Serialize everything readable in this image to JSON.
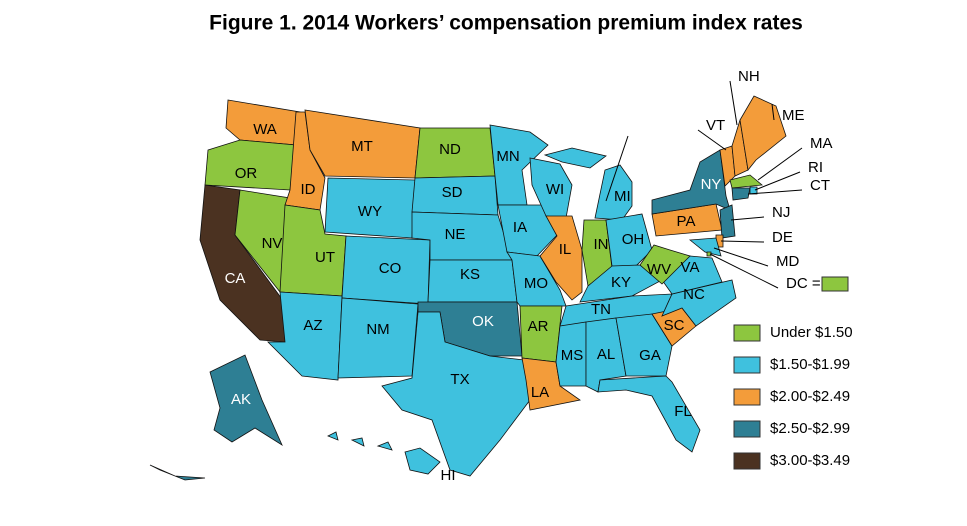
{
  "title": "Figure 1. 2014 Workers’ compensation premium index rates",
  "legend": [
    {
      "label": "Under $1.50",
      "color": "#8dc63f"
    },
    {
      "label": "$1.50-$1.99",
      "color": "#3fc1de"
    },
    {
      "label": "$2.00-$2.49",
      "color": "#f39c3a"
    },
    {
      "label": "$2.50-$2.99",
      "color": "#2e7f94"
    },
    {
      "label": "$3.00-$3.49",
      "color": "#4b3221"
    }
  ],
  "states": [
    {
      "label": "WA",
      "class": 2
    },
    {
      "label": "OR",
      "class": 0
    },
    {
      "label": "CA",
      "class": 4
    },
    {
      "label": "NV",
      "class": 0
    },
    {
      "label": "ID",
      "class": 2
    },
    {
      "label": "MT",
      "class": 2
    },
    {
      "label": "WY",
      "class": 1
    },
    {
      "label": "UT",
      "class": 0
    },
    {
      "label": "CO",
      "class": 1
    },
    {
      "label": "AZ",
      "class": 1
    },
    {
      "label": "NM",
      "class": 1
    },
    {
      "label": "ND",
      "class": 0
    },
    {
      "label": "SD",
      "class": 1
    },
    {
      "label": "NE",
      "class": 1
    },
    {
      "label": "KS",
      "class": 1
    },
    {
      "label": "OK",
      "class": 3
    },
    {
      "label": "TX",
      "class": 1
    },
    {
      "label": "MN",
      "class": 1
    },
    {
      "label": "IA",
      "class": 1
    },
    {
      "label": "MO",
      "class": 1
    },
    {
      "label": "AR",
      "class": 0
    },
    {
      "label": "LA",
      "class": 2
    },
    {
      "label": "WI",
      "class": 1
    },
    {
      "label": "IL",
      "class": 2
    },
    {
      "label": "MI",
      "class": 1
    },
    {
      "label": "IN",
      "class": 0
    },
    {
      "label": "OH",
      "class": 1
    },
    {
      "label": "KY",
      "class": 1
    },
    {
      "label": "TN",
      "class": 1
    },
    {
      "label": "MS",
      "class": 1
    },
    {
      "label": "AL",
      "class": 1
    },
    {
      "label": "GA",
      "class": 1
    },
    {
      "label": "FL",
      "class": 1
    },
    {
      "label": "SC",
      "class": 2
    },
    {
      "label": "NC",
      "class": 1
    },
    {
      "label": "VA",
      "class": 1
    },
    {
      "label": "WV",
      "class": 0
    },
    {
      "label": "PA",
      "class": 2
    },
    {
      "label": "NY",
      "class": 3
    },
    {
      "label": "VT",
      "class": 2
    },
    {
      "label": "NH",
      "class": 2
    },
    {
      "label": "ME",
      "class": 2
    },
    {
      "label": "MA",
      "class": 0
    },
    {
      "label": "RI",
      "class": 1
    },
    {
      "label": "CT",
      "class": 3
    },
    {
      "label": "NJ",
      "class": 3
    },
    {
      "label": "DE",
      "class": 2
    },
    {
      "label": "MD",
      "class": 1
    },
    {
      "label": "DC =",
      "class": 0
    },
    {
      "label": "AK",
      "class": 3
    },
    {
      "label": "HI",
      "class": 1
    }
  ]
}
